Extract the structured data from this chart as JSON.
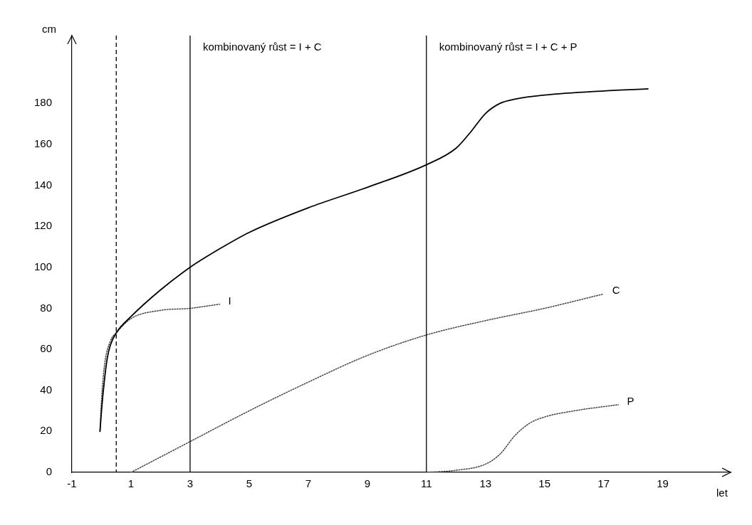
{
  "chart_data": {
    "type": "line",
    "xlabel": "let",
    "ylabel": "cm",
    "xlim": [
      -1,
      21.3
    ],
    "ylim": [
      0,
      213
    ],
    "xticks": [
      -1,
      1,
      3,
      5,
      7,
      9,
      11,
      13,
      15,
      17,
      19
    ],
    "yticks": [
      0,
      20,
      40,
      60,
      80,
      100,
      120,
      140,
      160,
      180
    ],
    "grid": false,
    "legend": false,
    "marker": "none",
    "series": [
      {
        "color": "#000000",
        "line_style": "solid",
        "x": [
          -0.05,
          0,
          0.1,
          0.2,
          0.3,
          0.5,
          1,
          2,
          3,
          4,
          5,
          7,
          9,
          11,
          12,
          12.5,
          13,
          13.5,
          14,
          15,
          17,
          18.5
        ],
        "values": [
          20,
          30,
          45,
          56,
          62,
          68,
          76,
          89,
          100,
          109,
          117,
          129,
          139,
          150,
          158,
          166,
          175,
          180,
          182,
          184,
          186,
          187
        ]
      },
      {
        "name": "I",
        "color": "#444444",
        "line_style": "dotted",
        "x": [
          -0.05,
          0,
          0.1,
          0.3,
          0.5,
          1,
          2,
          3,
          4
        ],
        "values": [
          20,
          35,
          52,
          64,
          68,
          75,
          79,
          80,
          82
        ]
      },
      {
        "name": "C",
        "color": "#444444",
        "line_style": "dotted",
        "x": [
          1,
          3,
          5,
          7,
          9,
          11,
          13,
          15,
          17
        ],
        "values": [
          0,
          15,
          30,
          44,
          57,
          67,
          74,
          80,
          87
        ]
      },
      {
        "name": "P",
        "color": "#444444",
        "line_style": "dotted",
        "x": [
          11,
          12,
          13,
          13.5,
          14,
          14.5,
          15,
          16,
          17.5
        ],
        "values": [
          0,
          1,
          4,
          9,
          18,
          24,
          27,
          30,
          33
        ]
      }
    ],
    "ref_lines": [
      {
        "axis": "x",
        "value": 0.5,
        "line_style": "dashed",
        "color": "#000000"
      },
      {
        "axis": "x",
        "value": 3,
        "line_style": "solid",
        "color": "#000000"
      },
      {
        "axis": "x",
        "value": 11,
        "line_style": "solid",
        "color": "#000000"
      }
    ],
    "annotations": [
      {
        "text": "kombinovaný růst = I + C",
        "x": 3,
        "y": 207
      },
      {
        "text": "kombinovaný růst = I + C + P",
        "x": 11,
        "y": 207
      }
    ]
  }
}
